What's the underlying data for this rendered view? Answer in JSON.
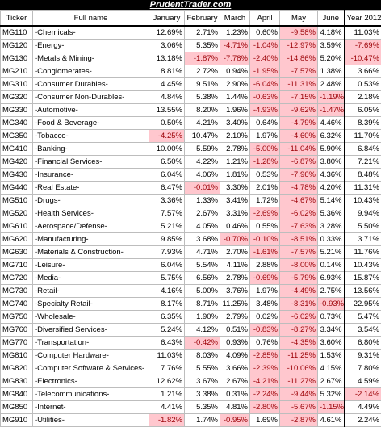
{
  "brand": {
    "title": "PrudentTrader.com"
  },
  "headers": [
    "Ticker",
    "Full name",
    "January",
    "February",
    "March",
    "April",
    "May",
    "June",
    "Year 2012"
  ],
  "rows": [
    [
      "MG110",
      "-Chemicals-",
      "12.69%",
      "2.71%",
      "1.23%",
      "0.60%",
      "-9.58%",
      "4.18%",
      "11.03%"
    ],
    [
      "MG120",
      "-Energy-",
      "3.06%",
      "5.35%",
      "-4.71%",
      "-1.04%",
      "-12.97%",
      "3.59%",
      "-7.69%"
    ],
    [
      "MG130",
      "-Metals & Mining-",
      "13.18%",
      "-1.87%",
      "-7.78%",
      "-2.40%",
      "-14.86%",
      "5.20%",
      "-10.47%"
    ],
    [
      "MG210",
      "-Conglomerates-",
      "8.81%",
      "2.72%",
      "0.94%",
      "-1.95%",
      "-7.57%",
      "1.38%",
      "3.66%"
    ],
    [
      "MG310",
      "-Consumer Durables-",
      "4.45%",
      "9.51%",
      "2.90%",
      "-6.04%",
      "-11.31%",
      "2.48%",
      "0.53%"
    ],
    [
      "MG320",
      "-Consumer Non-Durables-",
      "4.84%",
      "5.38%",
      "1.44%",
      "-0.63%",
      "-7.15%",
      "-1.19%",
      "2.18%"
    ],
    [
      "MG330",
      "-Automotive-",
      "13.55%",
      "8.20%",
      "1.96%",
      "-4.93%",
      "-9.62%",
      "-1.47%",
      "6.05%"
    ],
    [
      "MG340",
      "-Food & Beverage-",
      "0.50%",
      "4.21%",
      "3.40%",
      "0.64%",
      "-4.79%",
      "4.46%",
      "8.39%"
    ],
    [
      "MG350",
      "-Tobacco-",
      "-4.25%",
      "10.47%",
      "2.10%",
      "1.97%",
      "-4.60%",
      "6.32%",
      "11.70%"
    ],
    [
      "MG410",
      "-Banking-",
      "10.00%",
      "5.59%",
      "2.78%",
      "-5.00%",
      "-11.04%",
      "5.90%",
      "6.84%"
    ],
    [
      "MG420",
      "-Financial Services-",
      "6.50%",
      "4.22%",
      "1.21%",
      "-1.28%",
      "-6.87%",
      "3.80%",
      "7.21%"
    ],
    [
      "MG430",
      "-Insurance-",
      "6.04%",
      "4.06%",
      "1.81%",
      "0.53%",
      "-7.96%",
      "4.36%",
      "8.48%"
    ],
    [
      "MG440",
      "-Real Estate-",
      "6.47%",
      "-0.01%",
      "3.30%",
      "2.01%",
      "-4.78%",
      "4.20%",
      "11.31%"
    ],
    [
      "MG510",
      "-Drugs-",
      "3.36%",
      "1.33%",
      "3.41%",
      "1.72%",
      "-4.67%",
      "5.14%",
      "10.43%"
    ],
    [
      "MG520",
      "-Health Services-",
      "7.57%",
      "2.67%",
      "3.31%",
      "-2.69%",
      "-6.02%",
      "5.36%",
      "9.94%"
    ],
    [
      "MG610",
      "-Aerospace/Defense-",
      "5.21%",
      "4.05%",
      "0.46%",
      "0.55%",
      "-7.63%",
      "3.28%",
      "5.50%"
    ],
    [
      "MG620",
      "-Manufacturing-",
      "9.85%",
      "3.68%",
      "-0.70%",
      "-0.10%",
      "-8.51%",
      "0.33%",
      "3.71%"
    ],
    [
      "MG630",
      "-Materials & Construction-",
      "7.93%",
      "4.71%",
      "2.70%",
      "-1.61%",
      "-7.57%",
      "5.21%",
      "11.76%"
    ],
    [
      "MG710",
      "-Leisure-",
      "6.04%",
      "5.54%",
      "4.11%",
      "2.88%",
      "-8.00%",
      "0.14%",
      "10.43%"
    ],
    [
      "MG720",
      "-Media-",
      "5.75%",
      "6.56%",
      "2.78%",
      "-0.69%",
      "-5.79%",
      "6.93%",
      "15.87%"
    ],
    [
      "MG730",
      "-Retail-",
      "4.16%",
      "5.00%",
      "3.76%",
      "1.97%",
      "-4.49%",
      "2.75%",
      "13.56%"
    ],
    [
      "MG740",
      "-Specialty Retail-",
      "8.17%",
      "8.71%",
      "11.25%",
      "3.48%",
      "-8.31%",
      "-0.93%",
      "22.95%"
    ],
    [
      "MG750",
      "-Wholesale-",
      "6.35%",
      "1.90%",
      "2.79%",
      "0.02%",
      "-6.02%",
      "0.73%",
      "5.47%"
    ],
    [
      "MG760",
      "-Diversified Services-",
      "5.24%",
      "4.12%",
      "0.51%",
      "-0.83%",
      "-8.27%",
      "3.34%",
      "3.54%"
    ],
    [
      "MG770",
      "-Transportation-",
      "6.43%",
      "-0.42%",
      "0.93%",
      "0.76%",
      "-4.35%",
      "3.60%",
      "6.80%"
    ],
    [
      "MG810",
      "-Computer Hardware-",
      "11.03%",
      "8.03%",
      "4.09%",
      "-2.85%",
      "-11.25%",
      "1.53%",
      "9.31%"
    ],
    [
      "MG820",
      "-Computer Software & Services-",
      "7.76%",
      "5.55%",
      "3.66%",
      "-2.39%",
      "-10.06%",
      "4.15%",
      "7.80%"
    ],
    [
      "MG830",
      "-Electronics-",
      "12.62%",
      "3.67%",
      "2.67%",
      "-4.21%",
      "-11.27%",
      "2.67%",
      "4.59%"
    ],
    [
      "MG840",
      "-Telecommunications-",
      "1.21%",
      "3.38%",
      "0.31%",
      "-2.24%",
      "-9.44%",
      "5.32%",
      "-2.14%"
    ],
    [
      "MG850",
      "-Internet-",
      "4.41%",
      "5.35%",
      "4.81%",
      "-2.80%",
      "-5.67%",
      "-1.15%",
      "4.49%"
    ],
    [
      "MG910",
      "-Utilities-",
      "-1.82%",
      "1.74%",
      "-0.95%",
      "1.69%",
      "-2.87%",
      "4.61%",
      "2.24%"
    ]
  ],
  "colors": {
    "negative_bg": "#ffc7ce",
    "negative_text": "#9c0006",
    "brand_bg": "#000000"
  }
}
